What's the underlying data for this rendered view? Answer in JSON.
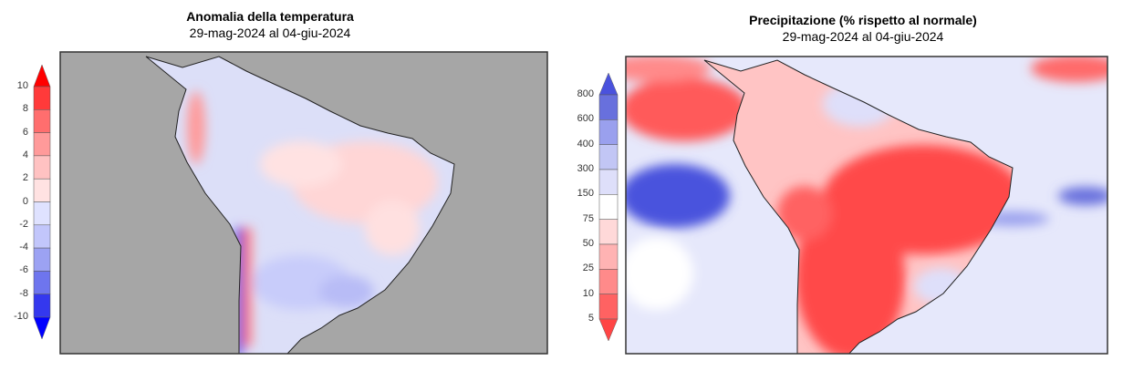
{
  "left_panel": {
    "title": "Anomalia della temperatura",
    "subtitle": "29-mag-2024 al 04-giu-2024",
    "colorbar": {
      "labels": [
        "10",
        "8",
        "6",
        "4",
        "2",
        "0",
        "-2",
        "-4",
        "-6",
        "-8",
        "-10"
      ],
      "colors": [
        "#ff3a3a",
        "#ff6e6e",
        "#ff9a9a",
        "#ffc2c2",
        "#ffe2e2",
        "#dfe2ff",
        "#c2c6fb",
        "#9ca2f3",
        "#6e75ee",
        "#3438ee"
      ],
      "arrow_top": "#ff0000",
      "arrow_bottom": "#0000ff"
    },
    "ocean_color": "#a6a6a6"
  },
  "right_panel": {
    "title": "Precipitazione (% rispetto al normale)",
    "subtitle": "29-mag-2024 al 04-giu-2024",
    "colorbar": {
      "labels": [
        "800",
        "600",
        "400",
        "300",
        "150",
        "75",
        "50",
        "25",
        "10",
        "5"
      ],
      "colors": [
        "#6870dd",
        "#9aa0ee",
        "#c2c6f5",
        "#dedffa",
        "#ffffff",
        "#ffd9d9",
        "#ffb3b3",
        "#ff8a8a",
        "#ff6262"
      ],
      "arrow_top": "#4a52dd",
      "arrow_bottom": "#ff4545"
    }
  }
}
